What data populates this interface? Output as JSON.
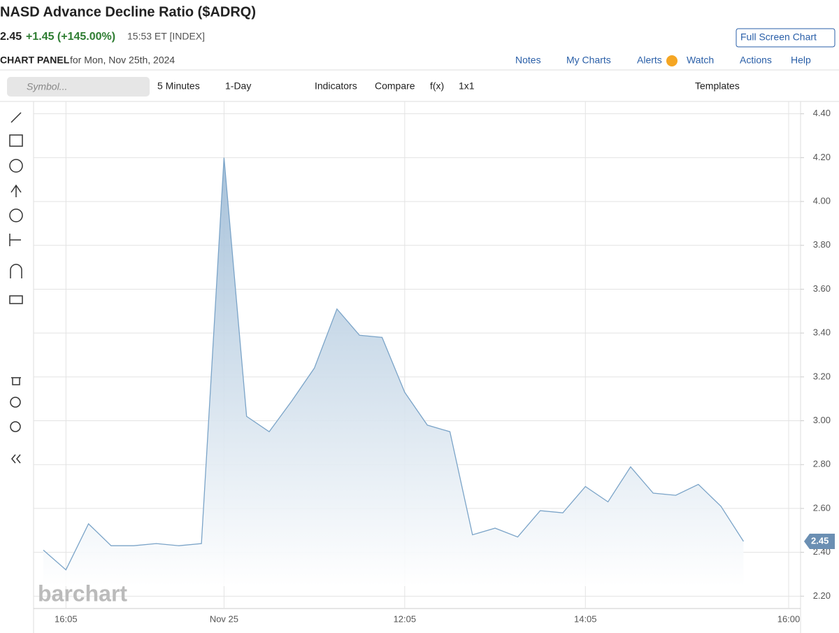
{
  "header": {
    "title": "NASD Advance Decline Ratio ($ADRQ)",
    "price": "2.45",
    "change": "+1.45 (+145.00%)",
    "time": "15:53 ET [INDEX]",
    "full_screen": "Full Screen Chart",
    "panel_label": "CHART PANEL",
    "panel_date": "for Mon, Nov 25th, 2024"
  },
  "nav": [
    "Notes",
    "My Charts",
    "Alerts",
    "Watch",
    "Actions",
    "Help"
  ],
  "toolbar": {
    "symbol_placeholder": "Symbol...",
    "interval": "5 Minutes",
    "range": "1-Day",
    "indicators": "Indicators",
    "compare": "Compare",
    "fx": "f(x)",
    "layout": "1x1",
    "templates": "Templates"
  },
  "watermark": "barchart",
  "chart_data": {
    "type": "area",
    "color": "#7ba4c8",
    "categories": [
      null,
      "16:05",
      null,
      null,
      null,
      null,
      null,
      null,
      "Nov 25",
      null,
      null,
      null,
      null,
      null,
      null,
      null,
      "12:05",
      null,
      null,
      null,
      null,
      null,
      null,
      null,
      "14:05",
      null,
      null,
      null,
      null,
      null,
      null,
      null,
      null,
      "16:00"
    ],
    "values": [
      2.41,
      2.32,
      2.53,
      2.43,
      2.43,
      2.44,
      2.43,
      2.44,
      4.2,
      3.02,
      2.95,
      3.09,
      3.24,
      3.51,
      3.39,
      3.38,
      3.13,
      2.98,
      2.95,
      2.48,
      2.51,
      2.47,
      2.59,
      2.58,
      2.7,
      2.63,
      2.79,
      2.67,
      2.66,
      2.71,
      2.61,
      2.45,
      null,
      null
    ],
    "ylim": [
      2.15,
      4.45
    ],
    "yticks": [
      {
        "value": 2.2,
        "label": "2.20"
      },
      {
        "value": 2.4,
        "label": "2.40"
      },
      {
        "value": 2.6,
        "label": "2.60"
      },
      {
        "value": 2.8,
        "label": "2.80"
      },
      {
        "value": 3.0,
        "label": "3.00"
      },
      {
        "value": 3.2,
        "label": "3.20"
      },
      {
        "value": 3.4,
        "label": "3.40"
      },
      {
        "value": 3.6,
        "label": "3.60"
      },
      {
        "value": 3.8,
        "label": "3.80"
      },
      {
        "value": 4.0,
        "label": "4.00"
      },
      {
        "value": 4.2,
        "label": "4.20"
      },
      {
        "value": 4.4,
        "label": "4.40"
      }
    ],
    "grid": true
  }
}
